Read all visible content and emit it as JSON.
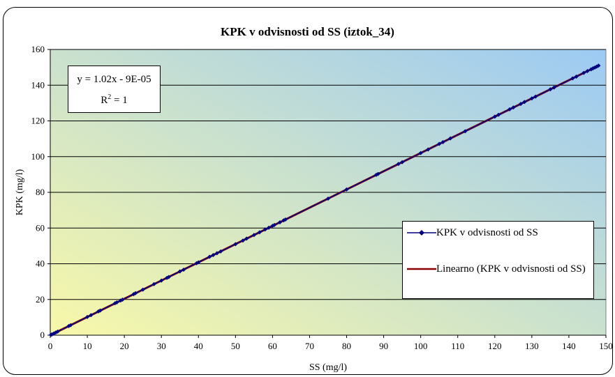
{
  "chart_data": {
    "type": "scatter",
    "title": "KPK v odvisnosti od SS (iztok_34)",
    "xlabel": "SS (mg/l)",
    "ylabel": "KPK (mg/l)",
    "xlim": [
      0,
      150
    ],
    "ylim": [
      0,
      160
    ],
    "xticks": [
      "0",
      "10",
      "20",
      "30",
      "40",
      "50",
      "60",
      "70",
      "80",
      "90",
      "100",
      "110",
      "120",
      "130",
      "140",
      "150"
    ],
    "yticks": [
      "0",
      "20",
      "40",
      "60",
      "80",
      "100",
      "120",
      "140",
      "160"
    ],
    "grid": "horizontal",
    "legend_position": "right",
    "series": [
      {
        "name": "KPK v odvisnosti od SS",
        "color": "#000080",
        "marker": "diamond",
        "x": [
          0.2,
          0.5,
          1,
          1.5,
          2,
          5,
          5.5,
          10,
          11,
          13,
          13.5,
          17.5,
          18,
          19,
          19.5,
          22.5,
          23,
          25,
          28,
          30,
          31.5,
          32,
          35,
          36,
          39.5,
          40,
          43,
          44,
          45,
          46,
          50,
          52,
          53,
          55,
          56.5,
          58,
          59,
          60,
          60.5,
          62,
          63,
          63.5,
          75,
          80,
          88,
          88.5,
          94,
          95,
          100,
          102,
          105,
          106,
          108,
          112,
          120,
          121,
          124,
          125,
          127,
          128,
          130,
          131,
          135,
          136,
          141,
          142,
          144,
          145,
          146,
          146.5,
          147,
          147.5,
          148
        ],
        "y": [
          0.2,
          0.5,
          1,
          1.5,
          2,
          5.1,
          5.6,
          10.2,
          11.2,
          13.3,
          13.8,
          17.9,
          18.4,
          19.4,
          19.9,
          23,
          23.5,
          25.5,
          28.6,
          30.6,
          32.1,
          32.6,
          35.7,
          36.7,
          40.3,
          40.8,
          43.9,
          44.9,
          45.9,
          46.9,
          51,
          53,
          54.1,
          56.1,
          57.6,
          59.2,
          60.2,
          61.2,
          61.7,
          63.2,
          64.3,
          64.8,
          76.5,
          81.6,
          89.8,
          90.3,
          95.9,
          96.9,
          102,
          104,
          107.1,
          108.1,
          110.2,
          114.2,
          122.4,
          123.4,
          126.5,
          127.5,
          129.5,
          130.6,
          132.6,
          133.6,
          137.7,
          138.7,
          143.8,
          144.8,
          146.9,
          147.9,
          148.9,
          149.4,
          149.9,
          150.4,
          151
        ]
      },
      {
        "name": "Linearno (KPK v odvisnosti od SS)",
        "color": "#8b0000",
        "type": "trendline",
        "slope": 1.02,
        "intercept": -9e-05,
        "x": [
          0,
          148
        ]
      }
    ],
    "annotations": {
      "equation": "y = 1.02x - 9E-05",
      "r2_prefix": "R",
      "r2_sup": "2",
      "r2_suffix": " = 1"
    },
    "background_gradient": [
      "#f8f8a8",
      "#9ccaf4"
    ]
  }
}
